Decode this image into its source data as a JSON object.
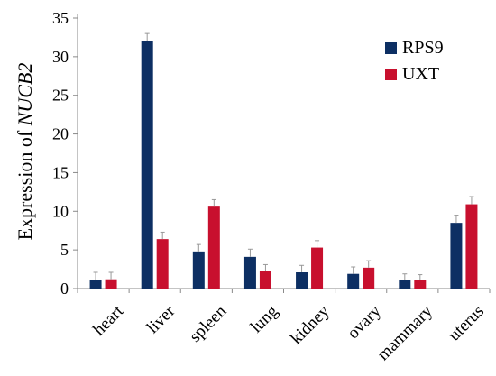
{
  "chart_data": {
    "type": "bar",
    "ylabel_prefix": "Expression of ",
    "ylabel_gene": "NUCB2",
    "xlabel": "",
    "ylim": [
      0,
      35
    ],
    "yticks": [
      0,
      5,
      10,
      15,
      20,
      25,
      30,
      35
    ],
    "grid": false,
    "legend_position": "top-right",
    "categories": [
      "heart",
      "liver",
      "spleen",
      "lung",
      "kidney",
      "ovary",
      "mammary",
      "uterus"
    ],
    "series": [
      {
        "name": "RPS9",
        "color": "#0d2f63",
        "values": [
          1.1,
          32.0,
          4.8,
          4.1,
          2.1,
          1.9,
          1.1,
          8.5
        ],
        "errors": [
          1.0,
          1.0,
          0.9,
          1.0,
          0.9,
          0.9,
          0.8,
          1.0
        ]
      },
      {
        "name": "UXT",
        "color": "#c8102e",
        "values": [
          1.2,
          6.4,
          10.6,
          2.3,
          5.3,
          2.7,
          1.1,
          10.9
        ],
        "errors": [
          0.9,
          0.9,
          0.9,
          0.8,
          0.9,
          0.9,
          0.7,
          1.0
        ]
      }
    ]
  }
}
